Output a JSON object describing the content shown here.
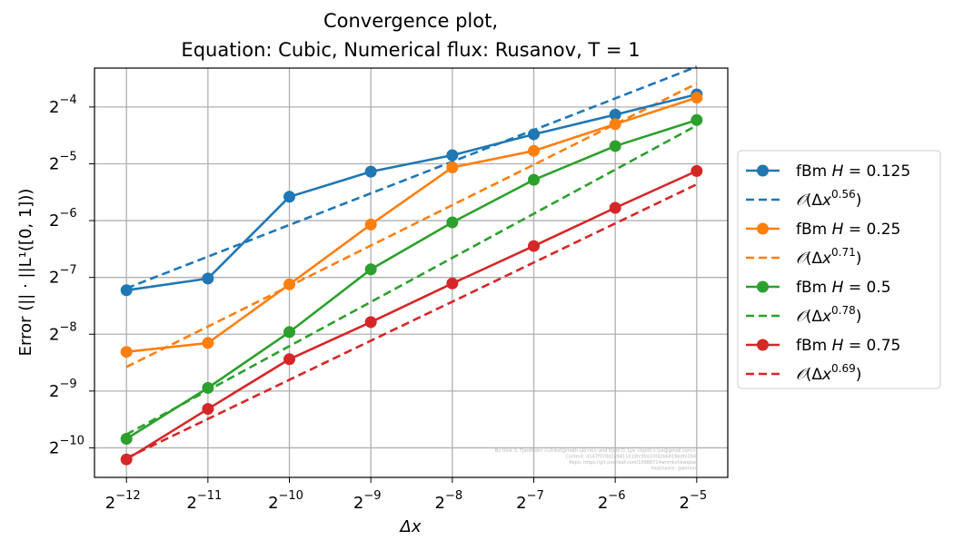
{
  "chart_data": {
    "type": "line",
    "title_lines": [
      "Convergence plot,",
      "Equation: Cubic, Numerical flux: Rusanov, T = 1"
    ],
    "xlabel": "Δx",
    "ylabel": "Error (|| · ||L¹([0, 1]))",
    "x_scale": "log2",
    "y_scale": "log2",
    "x_ticks": [
      {
        "base": "2",
        "exp": "−12",
        "value": 0.000244140625
      },
      {
        "base": "2",
        "exp": "−11",
        "value": 0.00048828125
      },
      {
        "base": "2",
        "exp": "−10",
        "value": 0.0009765625
      },
      {
        "base": "2",
        "exp": "−9",
        "value": 0.001953125
      },
      {
        "base": "2",
        "exp": "−8",
        "value": 0.00390625
      },
      {
        "base": "2",
        "exp": "−7",
        "value": 0.0078125
      },
      {
        "base": "2",
        "exp": "−6",
        "value": 0.015625
      },
      {
        "base": "2",
        "exp": "−5",
        "value": 0.03125
      }
    ],
    "y_ticks": [
      {
        "base": "2",
        "exp": "−10",
        "value": 0.0009765625
      },
      {
        "base": "2",
        "exp": "−9",
        "value": 0.001953125
      },
      {
        "base": "2",
        "exp": "−8",
        "value": 0.00390625
      },
      {
        "base": "2",
        "exp": "−7",
        "value": 0.0078125
      },
      {
        "base": "2",
        "exp": "−6",
        "value": 0.015625
      },
      {
        "base": "2",
        "exp": "−5",
        "value": 0.03125
      },
      {
        "base": "2",
        "exp": "−4",
        "value": 0.0625
      }
    ],
    "xlim": [
      0.000186,
      0.0407
    ],
    "ylim": [
      0.000681,
      0.1005
    ],
    "grid": true,
    "legend_position": "outside-right",
    "x": [
      0.000244140625,
      0.00048828125,
      0.0009765625,
      0.001953125,
      0.00390625,
      0.0078125,
      0.015625,
      0.03125
    ],
    "series": [
      {
        "name": "fBm H = 0.125",
        "legend_prefix": "fBm ",
        "legend_var": "H",
        "legend_value": " = 0.125",
        "kind": "measured",
        "color": "#1f77b4",
        "values": [
          0.00668,
          0.00771,
          0.0209,
          0.0284,
          0.0347,
          0.0448,
          0.0569,
          0.0729
        ]
      },
      {
        "name": "O(Δx^0.56)",
        "kind": "fit",
        "order": "0.56",
        "color": "#1f77b4",
        "values": [
          0.00684,
          0.01007,
          0.01482,
          0.0218,
          0.0321,
          0.0472,
          0.0694,
          0.1022
        ]
      },
      {
        "name": "fBm H = 0.25",
        "legend_prefix": "fBm ",
        "legend_var": "H",
        "legend_value": " = 0.25",
        "kind": "measured",
        "color": "#ff7f0e",
        "values": [
          0.00315,
          0.00351,
          0.00718,
          0.0149,
          0.0299,
          0.0366,
          0.0507,
          0.07
        ]
      },
      {
        "name": "O(Δx^0.71)",
        "kind": "fit",
        "order": "0.71",
        "color": "#ff7f0e",
        "values": [
          0.00262,
          0.00429,
          0.00703,
          0.01152,
          0.01888,
          0.0309,
          0.0507,
          0.0831
        ]
      },
      {
        "name": "fBm H = 0.5",
        "legend_prefix": "fBm ",
        "legend_var": "H",
        "legend_value": " = 0.5",
        "kind": "measured",
        "color": "#2ca02c",
        "values": [
          0.00109,
          0.00203,
          0.00401,
          0.00862,
          0.0153,
          0.0257,
          0.0388,
          0.0533
        ]
      },
      {
        "name": "O(Δx^0.78)",
        "kind": "fit",
        "order": "0.78",
        "color": "#2ca02c",
        "values": [
          0.00115,
          0.00197,
          0.00338,
          0.00579,
          0.00992,
          0.017,
          0.0291,
          0.0499
        ]
      },
      {
        "name": "fBm H = 0.75",
        "legend_prefix": "fBm ",
        "legend_var": "H",
        "legend_value": " = 0.75",
        "kind": "measured",
        "color": "#d62728",
        "values": [
          0.000848,
          0.00157,
          0.00288,
          0.00453,
          0.00726,
          0.01146,
          0.01826,
          0.02863
        ]
      },
      {
        "name": "O(Δx^0.69)",
        "kind": "fit",
        "order": "0.69",
        "color": "#d62728",
        "values": [
          0.000862,
          0.00139,
          0.00224,
          0.00361,
          0.00581,
          0.00937,
          0.0151,
          0.02432
        ]
      }
    ],
    "watermark_lines": [
      "By Ulrik S. Fjordholm <ulriksf@math.uio.no> and Kjetil O. Lye <kjetil.o.lye@gmail.com>",
      "Commit: d147f070d2e9411019fc90a33f42b6819bdfe394",
      "Repo: https://git.overleaf.com/10988714wnmkchkwqbw",
      "Hostname: galerkin"
    ]
  }
}
